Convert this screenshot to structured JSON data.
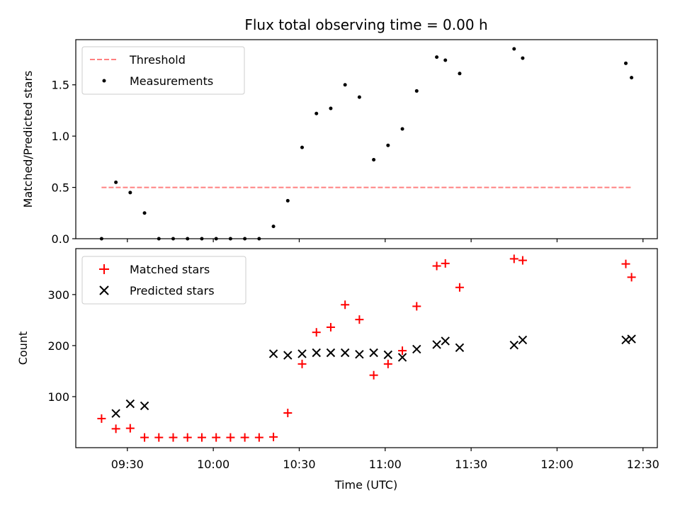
{
  "chart_data": [
    {
      "type": "line",
      "title": "Flux total observing time = 0.00 h",
      "xlabel": "",
      "ylabel": "Matched/Predicted stars",
      "ylim": [
        0,
        1.94
      ],
      "yticks": [
        0.0,
        0.5,
        1.0,
        1.5
      ],
      "ytick_labels": [
        "0.0",
        "0.5",
        "1.0",
        "1.5"
      ],
      "xlim": [
        "09:12",
        "12:35"
      ],
      "legend": "top-left",
      "series": [
        {
          "name": "Threshold",
          "style": "dashed-line",
          "color": "#ff8080",
          "x": [
            "09:21",
            "12:26"
          ],
          "y": [
            0.5,
            0.5
          ]
        },
        {
          "name": "Measurements",
          "style": "dot",
          "color": "#000000",
          "x": [
            "09:21",
            "09:26",
            "09:31",
            "09:36",
            "09:41",
            "09:46",
            "09:51",
            "09:56",
            "10:01",
            "10:06",
            "10:11",
            "10:16",
            "10:21",
            "10:26",
            "10:31",
            "10:36",
            "10:41",
            "10:46",
            "10:51",
            "10:56",
            "11:01",
            "11:06",
            "11:11",
            "11:18",
            "11:21",
            "11:26",
            "11:45",
            "11:48",
            "12:24",
            "12:26"
          ],
          "y": [
            0.0,
            0.55,
            0.45,
            0.25,
            0.0,
            0.0,
            0.0,
            0.0,
            0.0,
            0.0,
            0.0,
            0.0,
            0.12,
            0.37,
            0.89,
            1.22,
            1.27,
            1.5,
            1.38,
            0.77,
            0.91,
            1.07,
            1.44,
            1.77,
            1.74,
            1.61,
            1.85,
            1.76,
            1.71,
            1.57
          ]
        }
      ]
    },
    {
      "type": "scatter",
      "xlabel": "Time (UTC)",
      "ylabel": "Count",
      "ylim": [
        0,
        390
      ],
      "yticks": [
        100,
        200,
        300
      ],
      "ytick_labels": [
        "100",
        "200",
        "300"
      ],
      "xlim": [
        "09:12",
        "12:35"
      ],
      "xticks": [
        "09:30",
        "10:00",
        "10:30",
        "11:00",
        "11:30",
        "12:00",
        "12:30"
      ],
      "legend": "top-left",
      "series": [
        {
          "name": "Matched stars",
          "marker": "plus",
          "color": "#ff0000",
          "x": [
            "09:21",
            "09:26",
            "09:31",
            "09:36",
            "09:41",
            "09:46",
            "09:51",
            "09:56",
            "10:01",
            "10:06",
            "10:11",
            "10:16",
            "10:21",
            "10:26",
            "10:31",
            "10:36",
            "10:41",
            "10:46",
            "10:51",
            "10:56",
            "11:01",
            "11:06",
            "11:11",
            "11:18",
            "11:21",
            "11:26",
            "11:45",
            "11:48",
            "12:24",
            "12:26"
          ],
          "y": [
            57,
            37,
            38,
            20,
            20,
            20,
            20,
            20,
            20,
            20,
            20,
            20,
            21,
            68,
            164,
            226,
            236,
            280,
            251,
            142,
            164,
            190,
            277,
            356,
            361,
            314,
            370,
            367,
            360,
            334
          ]
        },
        {
          "name": "Predicted stars",
          "marker": "x",
          "color": "#000000",
          "x": [
            "09:26",
            "09:31",
            "09:36",
            "10:21",
            "10:26",
            "10:31",
            "10:36",
            "10:41",
            "10:46",
            "10:51",
            "10:56",
            "11:01",
            "11:06",
            "11:11",
            "11:18",
            "11:21",
            "11:26",
            "11:45",
            "11:48",
            "12:24",
            "12:26"
          ],
          "y": [
            67,
            86,
            82,
            184,
            181,
            184,
            186,
            186,
            186,
            183,
            186,
            182,
            177,
            193,
            202,
            209,
            196,
            201,
            211,
            211,
            213
          ]
        }
      ]
    }
  ]
}
